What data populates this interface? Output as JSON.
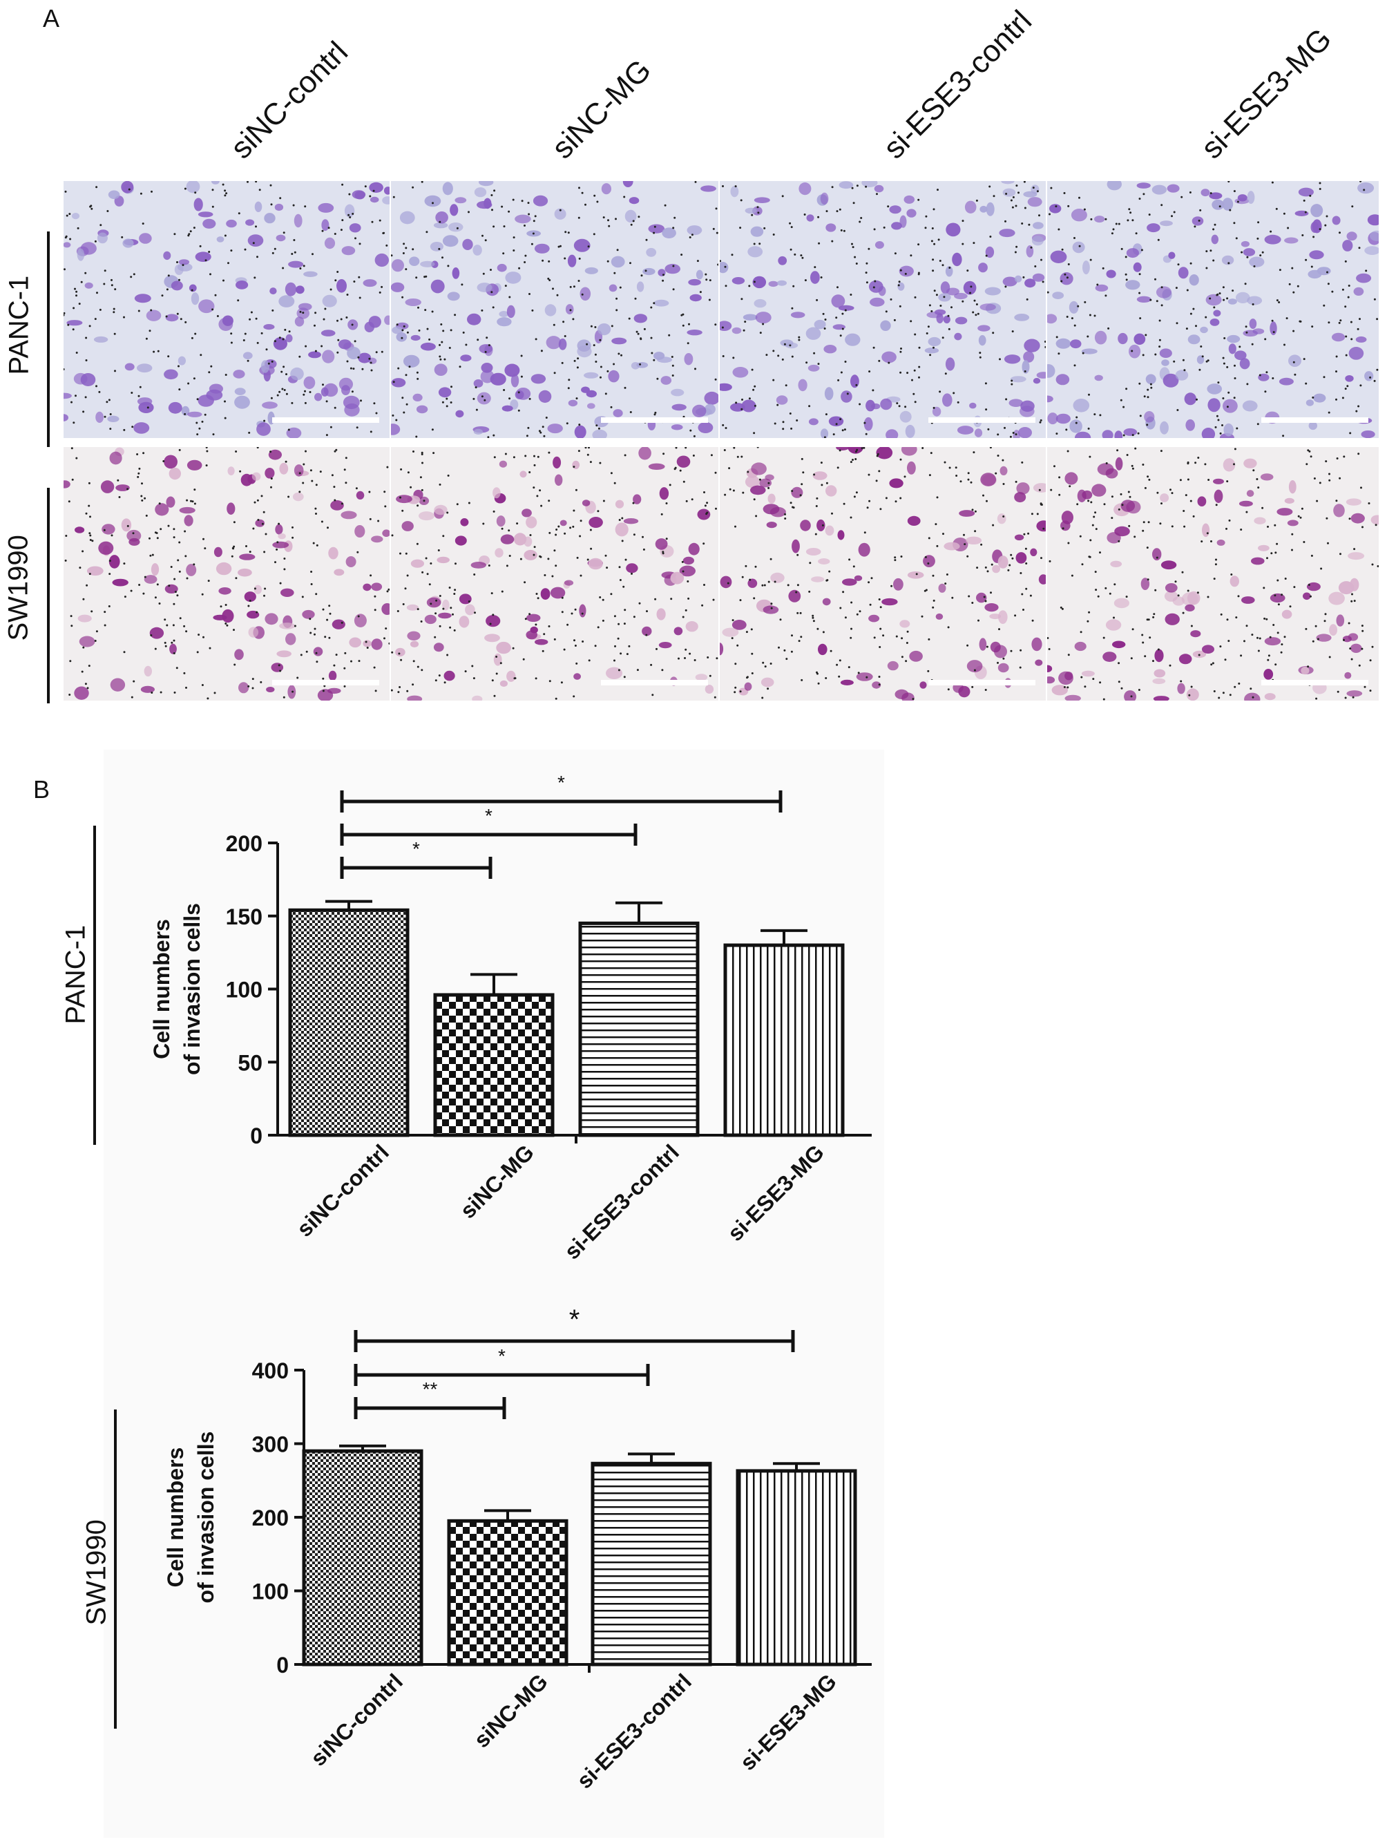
{
  "panel_a": {
    "letter": "A",
    "columns": [
      "siNC-contrl",
      "siNC-MG",
      "si-ESE3-contrl",
      "si-ESE3-MG"
    ],
    "rows": [
      "PANC-1",
      "SW1990"
    ]
  },
  "panel_b": {
    "letter": "B"
  },
  "chart_data": [
    {
      "type": "bar",
      "row_label": "PANC-1",
      "categories": [
        "siNC-contrl",
        "siNC-MG",
        "si-ESE3-contrl",
        "si-ESE3-MG"
      ],
      "values": [
        154,
        96,
        145,
        130
      ],
      "errors": [
        6,
        14,
        14,
        10
      ],
      "ylabel": [
        "Cell numbers",
        "of invasion cells"
      ],
      "ylim": [
        0,
        200
      ],
      "yticks": [
        "0",
        "50",
        "100",
        "150",
        "200"
      ],
      "ytick_values": [
        0,
        50,
        100,
        150,
        200
      ],
      "patterns": [
        "crosshatch-fine",
        "checker",
        "horizontal-lines",
        "vertical-lines"
      ],
      "significance": [
        {
          "from": 0,
          "to": 1,
          "label": "*"
        },
        {
          "from": 0,
          "to": 2,
          "label": "*"
        },
        {
          "from": 0,
          "to": 3,
          "label": "*"
        }
      ]
    },
    {
      "type": "bar",
      "row_label": "SW1990",
      "categories": [
        "siNC-contrl",
        "siNC-MG",
        "si-ESE3-contrl",
        "si-ESE3-MG"
      ],
      "values": [
        290,
        195,
        273,
        263
      ],
      "errors": [
        7,
        14,
        13,
        10
      ],
      "ylabel": [
        "Cell numbers",
        "of invasion cells"
      ],
      "ylim": [
        0,
        400
      ],
      "yticks": [
        "0",
        "100",
        "200",
        "300",
        "400"
      ],
      "ytick_values": [
        0,
        100,
        200,
        300,
        400
      ],
      "patterns": [
        "crosshatch-fine",
        "checker",
        "horizontal-lines",
        "vertical-lines"
      ],
      "significance": [
        {
          "from": 0,
          "to": 1,
          "label": "**"
        },
        {
          "from": 0,
          "to": 2,
          "label": "*"
        },
        {
          "from": 0,
          "to": 3,
          "label": "*"
        }
      ]
    }
  ]
}
